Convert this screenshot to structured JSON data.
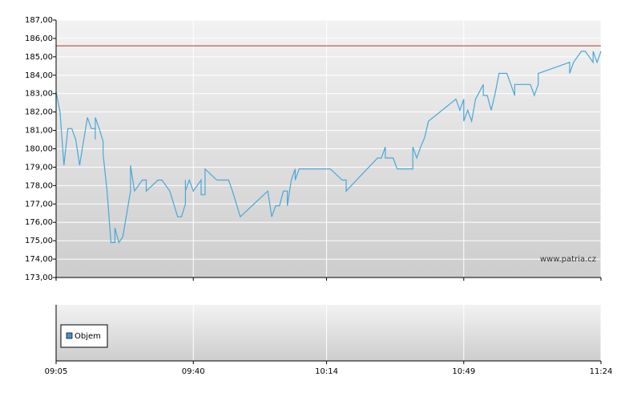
{
  "chart_data": {
    "type": "line",
    "x": [
      "09:05",
      "09:06",
      "09:07",
      "09:08",
      "09:09",
      "09:10",
      "09:11",
      "09:12",
      "09:13",
      "09:14",
      "09:15",
      "09:15",
      "09:15",
      "09:16",
      "09:17",
      "09:17",
      "09:18",
      "09:19",
      "09:20",
      "09:20",
      "09:21",
      "09:22",
      "09:24",
      "09:24",
      "09:25",
      "09:27",
      "09:28",
      "09:28",
      "09:31",
      "09:32",
      "09:34",
      "09:36",
      "09:37",
      "09:38",
      "09:38",
      "09:38",
      "09:39",
      "09:40",
      "09:42",
      "09:42",
      "09:43",
      "09:43",
      "09:46",
      "09:49",
      "09:50",
      "09:52",
      "09:59",
      "10:00",
      "10:01",
      "10:02",
      "10:03",
      "10:04",
      "10:04",
      "10:05",
      "10:06",
      "10:06",
      "10:07",
      "10:15",
      "10:18",
      "10:19",
      "10:19",
      "10:27",
      "10:28",
      "10:29",
      "10:29",
      "10:31",
      "10:32",
      "10:36",
      "10:36",
      "10:37",
      "10:38",
      "10:39",
      "10:40",
      "10:47",
      "10:48",
      "10:49",
      "10:49",
      "10:50",
      "10:51",
      "10:52",
      "10:54",
      "10:54",
      "10:55",
      "10:56",
      "10:57",
      "10:58",
      "11:00",
      "11:01",
      "11:02",
      "11:02",
      "11:06",
      "11:07",
      "11:08",
      "11:08",
      "11:16",
      "11:16",
      "11:17",
      "11:19",
      "11:20",
      "11:22",
      "11:22",
      "11:23",
      "11:24"
    ],
    "values": [
      183.1,
      182.0,
      179.1,
      181.1,
      181.1,
      180.5,
      179.1,
      180.4,
      181.7,
      181.1,
      181.1,
      180.5,
      181.7,
      181.1,
      180.4,
      179.7,
      177.7,
      174.9,
      174.9,
      175.7,
      174.9,
      175.2,
      177.7,
      179.1,
      177.7,
      178.3,
      178.3,
      177.7,
      178.3,
      178.3,
      177.7,
      176.3,
      176.3,
      177.0,
      178.3,
      177.7,
      178.3,
      177.7,
      178.3,
      177.5,
      177.5,
      178.9,
      178.3,
      178.3,
      177.7,
      176.3,
      177.7,
      176.3,
      176.9,
      176.9,
      177.7,
      177.7,
      176.9,
      178.3,
      178.9,
      178.3,
      178.9,
      178.9,
      178.3,
      178.3,
      177.7,
      179.5,
      179.5,
      180.1,
      179.5,
      179.5,
      178.9,
      178.9,
      180.1,
      179.5,
      180.1,
      180.6,
      181.5,
      182.7,
      182.1,
      182.7,
      181.5,
      182.1,
      181.5,
      182.7,
      183.5,
      182.9,
      182.9,
      182.1,
      183.0,
      184.1,
      184.1,
      183.5,
      182.9,
      183.5,
      183.5,
      182.9,
      183.5,
      184.1,
      184.7,
      184.1,
      184.7,
      185.3,
      185.3,
      184.7,
      185.3,
      184.7,
      185.3
    ],
    "color": "#4aa8d8",
    "xlim": [
      "09:05",
      "11:24"
    ],
    "xticks": [
      "09:05",
      "09:40",
      "10:14",
      "10:49",
      "11:24"
    ],
    "ylim": [
      173,
      187
    ],
    "yticks": [
      {
        "value": 173,
        "label": "173,00"
      },
      {
        "value": 174,
        "label": "174,00"
      },
      {
        "value": 175,
        "label": "175,00"
      },
      {
        "value": 176,
        "label": "176,00"
      },
      {
        "value": 177,
        "label": "177,00"
      },
      {
        "value": 178,
        "label": "178,00"
      },
      {
        "value": 179,
        "label": "179,00"
      },
      {
        "value": 180,
        "label": "180,00"
      },
      {
        "value": 181,
        "label": "181,00"
      },
      {
        "value": 182,
        "label": "182,00"
      },
      {
        "value": 183,
        "label": "183,00"
      },
      {
        "value": 184,
        "label": "184,00"
      },
      {
        "value": 185,
        "label": "185,00"
      },
      {
        "value": 186,
        "label": "186,00"
      },
      {
        "value": 187,
        "label": "187,00"
      }
    ],
    "grid": true,
    "reference_line": {
      "value": 185.6,
      "color": "#c03030"
    },
    "volume_legend": {
      "label": "Objem",
      "color": "#4a90c8"
    },
    "watermark": "www.patria.cz"
  }
}
